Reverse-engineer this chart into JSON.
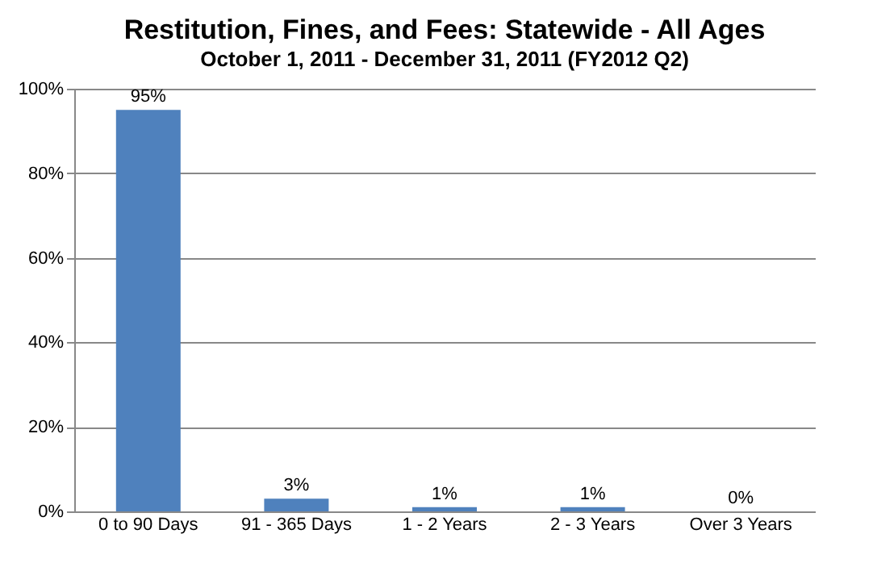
{
  "chart_data": {
    "type": "bar",
    "title": "Restitution, Fines, and Fees: Statewide  - All Ages",
    "subtitle": "October 1, 2011 - December 31, 2011 (FY2012 Q2)",
    "categories": [
      "0 to 90 Days",
      "91 - 365 Days",
      "1 - 2 Years",
      "2 - 3 Years",
      "Over 3 Years"
    ],
    "values": [
      95,
      3,
      1,
      1,
      0
    ],
    "value_labels": [
      "95%",
      "3%",
      "1%",
      "1%",
      "0%"
    ],
    "color": "#4f81bd",
    "ylim": [
      0,
      100
    ],
    "yticks": [
      {
        "value": 0,
        "label": "0%"
      },
      {
        "value": 20,
        "label": "20%"
      },
      {
        "value": 40,
        "label": "40%"
      },
      {
        "value": 60,
        "label": "60%"
      },
      {
        "value": 80,
        "label": "80%"
      },
      {
        "value": 100,
        "label": "100%"
      }
    ],
    "grid": "y"
  }
}
